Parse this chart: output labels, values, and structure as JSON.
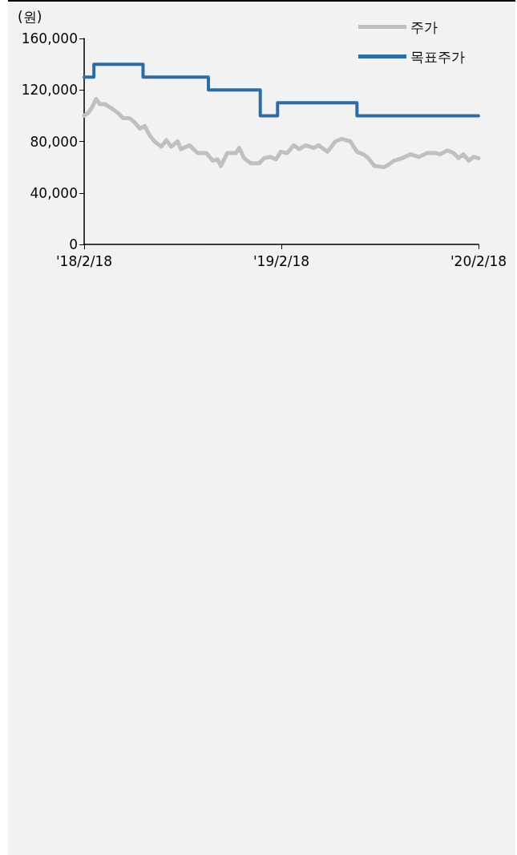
{
  "chart_data": {
    "type": "line",
    "ylabel": "(원)",
    "xlim": [
      "2018-02-18",
      "2020-02-18"
    ],
    "xticks": [
      {
        "value": "2018-02-18",
        "label": "'18/2/18"
      },
      {
        "value": "2019-02-18",
        "label": "'19/2/18"
      },
      {
        "value": "2020-02-18",
        "label": "'20/2/18"
      }
    ],
    "ylim": [
      0,
      160000
    ],
    "yticks": [
      {
        "value": 0,
        "label": "0"
      },
      {
        "value": 40000,
        "label": "40,000"
      },
      {
        "value": 80000,
        "label": "80,000"
      },
      {
        "value": 120000,
        "label": "120,000"
      },
      {
        "value": 160000,
        "label": "160,000"
      }
    ],
    "grid": false,
    "legend": "top right",
    "marker": "none",
    "series": [
      {
        "name": "주가",
        "color": "#c0c0c0",
        "x": [
          "2018-02-18",
          "2018-02-25",
          "2018-03-04",
          "2018-03-12",
          "2018-03-19",
          "2018-03-28",
          "2018-04-09",
          "2018-04-22",
          "2018-05-01",
          "2018-05-13",
          "2018-05-22",
          "2018-06-01",
          "2018-06-10",
          "2018-06-19",
          "2018-06-28",
          "2018-07-11",
          "2018-07-20",
          "2018-07-29",
          "2018-08-10",
          "2018-08-16",
          "2018-09-01",
          "2018-09-16",
          "2018-10-02",
          "2018-10-14",
          "2018-10-23",
          "2018-10-29",
          "2018-11-10",
          "2018-11-26",
          "2018-12-02",
          "2018-12-11",
          "2018-12-23",
          "2019-01-08",
          "2019-01-17",
          "2019-01-29",
          "2019-02-08",
          "2019-02-17",
          "2019-03-01",
          "2019-03-13",
          "2019-03-23",
          "2019-04-04",
          "2019-04-19",
          "2019-04-28",
          "2019-05-14",
          "2019-05-20",
          "2019-05-29",
          "2019-06-10",
          "2019-06-26",
          "2019-07-08",
          "2019-07-20",
          "2019-07-29",
          "2019-08-09",
          "2019-08-27",
          "2019-09-05",
          "2019-09-14",
          "2019-09-30",
          "2019-10-15",
          "2019-10-31",
          "2019-11-15",
          "2019-11-30",
          "2019-12-09",
          "2019-12-22",
          "2020-01-03",
          "2020-01-12",
          "2020-01-21",
          "2020-01-31",
          "2020-02-09",
          "2020-02-18"
        ],
        "values": [
          100000,
          102000,
          106000,
          113000,
          109000,
          109000,
          106000,
          102000,
          98000,
          98000,
          95000,
          90000,
          92000,
          85000,
          80000,
          76000,
          81000,
          76000,
          80000,
          74000,
          77000,
          71000,
          71000,
          65000,
          66000,
          61000,
          71000,
          71000,
          75000,
          67000,
          63000,
          63000,
          67000,
          68000,
          66000,
          72000,
          71000,
          77000,
          74000,
          77000,
          75000,
          77000,
          72000,
          75000,
          80000,
          82000,
          80000,
          72000,
          70000,
          67000,
          61000,
          60000,
          62000,
          65000,
          67000,
          70000,
          68000,
          71000,
          71000,
          70000,
          73000,
          71000,
          67000,
          70000,
          65000,
          68000,
          67000
        ]
      },
      {
        "name": "목표주가",
        "type": "step",
        "color": "#2e6da4",
        "x": [
          "2018-02-18",
          "2018-03-08",
          "2018-06-07",
          "2018-10-06",
          "2019-01-10",
          "2019-02-11",
          "2019-07-08",
          "2020-02-18"
        ],
        "values": [
          130000,
          140000,
          130000,
          120000,
          100000,
          110000,
          100000,
          100000
        ]
      }
    ]
  }
}
